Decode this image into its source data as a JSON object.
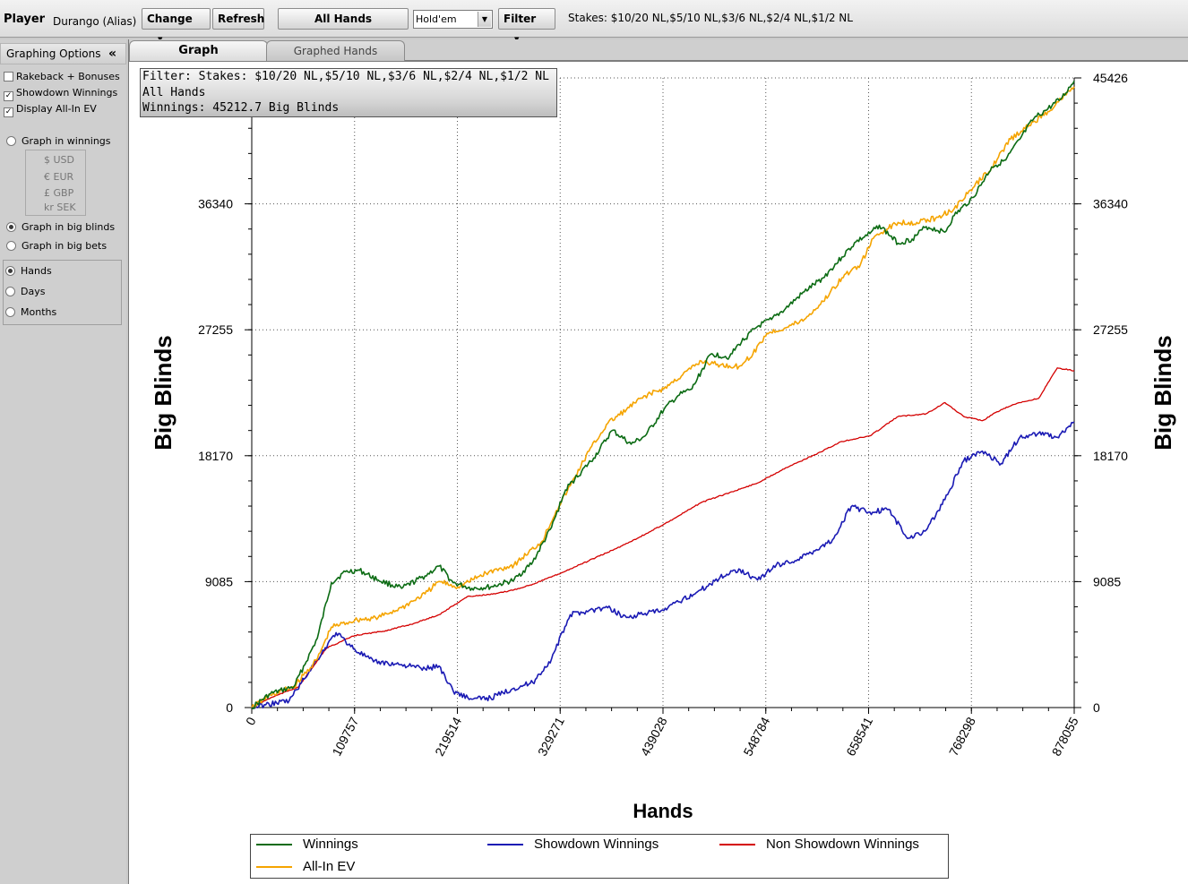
{
  "toolbar": {
    "player_label": "Player",
    "player_name": "Durango (Alias)",
    "change_label": "Change",
    "refresh_label": "Refresh",
    "all_hands_label": "All Hands",
    "game_value": "Hold'em",
    "filter_label": "Filter",
    "stakes_text": "Stakes: $10/20 NL,$5/10 NL,$3/6 NL,$2/4 NL,$1/2 NL"
  },
  "sidebar": {
    "title": "Graphing Options",
    "collapse_glyph": "«",
    "options": [
      {
        "label": "Rakeback + Bonuses",
        "checked": false
      },
      {
        "label": "Showdown Winnings",
        "checked": true
      },
      {
        "label": "Display All-In EV",
        "checked": true
      }
    ],
    "graph_in_winnings": "Graph in winnings",
    "currencies": [
      "$ USD",
      "€ EUR",
      "£ GBP",
      "kr SEK"
    ],
    "graph_in_big_blinds": "Graph in big blinds",
    "graph_in_big_bets": "Graph in big bets",
    "unit_selected": "big blinds",
    "timeframes": [
      "Hands",
      "Days",
      "Months"
    ],
    "timeframe_selected": "Hands"
  },
  "tabs": {
    "graph": "Graph",
    "graphed_hands": "Graphed Hands",
    "active": "Graph"
  },
  "filter_box": {
    "line1": "Filter: Stakes: $10/20 NL,$5/10 NL,$3/6 NL,$2/4 NL,$1/2 NL",
    "line2": "All Hands",
    "line3": "Winnings: 45212.7 Big Blinds"
  },
  "colors": {
    "winnings": "#0b6b13",
    "all_in_ev": "#f5a400",
    "showdown": "#1a1ab4",
    "non_showdown": "#d40000"
  },
  "chart_data": {
    "type": "line",
    "xlabel": "Hands",
    "ylabel": "Big Blinds",
    "x_ticks": [
      "0",
      "109757",
      "219514",
      "329271",
      "439028",
      "548784",
      "658541",
      "768298",
      "878055"
    ],
    "y_ticks": [
      "0",
      "9085",
      "18170",
      "27255",
      "36340",
      "45426"
    ],
    "xlim": [
      0,
      878055
    ],
    "ylim": [
      0,
      45426
    ],
    "grid": true,
    "legend_position": "bottom",
    "series": [
      {
        "name": "Winnings",
        "color": "#0b6b13",
        "x": [
          0,
          20000,
          45000,
          70000,
          85000,
          100000,
          115000,
          135000,
          160000,
          185000,
          200000,
          215000,
          235000,
          255000,
          280000,
          300000,
          320000,
          335000,
          345000,
          365000,
          385000,
          405000,
          420000,
          440000,
          455000,
          470000,
          490000,
          510000,
          520000,
          540000,
          555000,
          570000,
          590000,
          610000,
          630000,
          645000,
          660000,
          670000,
          690000,
          705000,
          720000,
          740000,
          750000,
          770000,
          790000,
          805000,
          820000,
          835000,
          850000,
          865000,
          878055
        ],
        "y": [
          0,
          1000,
          1500,
          5000,
          9000,
          9800,
          9900,
          9200,
          8600,
          9500,
          10200,
          9000,
          8600,
          8700,
          9200,
          10500,
          13000,
          15700,
          16500,
          18000,
          20000,
          19000,
          19600,
          21500,
          22500,
          23000,
          25500,
          25300,
          26200,
          27500,
          28000,
          28800,
          30000,
          31000,
          32500,
          33600,
          34200,
          34800,
          33500,
          33800,
          34700,
          34300,
          35500,
          36800,
          39000,
          39500,
          41000,
          42500,
          43200,
          44000,
          45213
        ]
      },
      {
        "name": "All-In EV",
        "color": "#f5a400",
        "x": [
          0,
          20000,
          45000,
          70000,
          85000,
          110000,
          135000,
          160000,
          185000,
          200000,
          220000,
          250000,
          280000,
          310000,
          325000,
          340000,
          360000,
          380000,
          400000,
          420000,
          440000,
          460000,
          480000,
          500000,
          520000,
          535000,
          550000,
          570000,
          590000,
          610000,
          630000,
          650000,
          665000,
          690000,
          710000,
          730000,
          750000,
          770000,
          790000,
          810000,
          830000,
          850000,
          878055
        ],
        "y": [
          0,
          900,
          1500,
          3500,
          5800,
          6300,
          6500,
          7200,
          8200,
          9100,
          8700,
          9700,
          10300,
          12000,
          14200,
          16000,
          18500,
          20500,
          21500,
          22500,
          23000,
          24000,
          25000,
          24700,
          24600,
          25500,
          27000,
          27400,
          28000,
          29300,
          31000,
          32000,
          34000,
          35000,
          35000,
          35300,
          36000,
          37500,
          39000,
          41000,
          42000,
          43000,
          44800
        ]
      },
      {
        "name": "Showdown Winnings",
        "color": "#1a1ab4",
        "x": [
          0,
          15000,
          40000,
          70000,
          90000,
          110000,
          130000,
          160000,
          185000,
          200000,
          215000,
          235000,
          255000,
          280000,
          300000,
          320000,
          340000,
          360000,
          380000,
          400000,
          420000,
          440000,
          460000,
          480000,
          500000,
          520000,
          540000,
          560000,
          580000,
          600000,
          620000,
          640000,
          660000,
          680000,
          700000,
          720000,
          740000,
          760000,
          780000,
          800000,
          820000,
          840000,
          860000,
          878055
        ],
        "y": [
          0,
          200,
          500,
          3500,
          5400,
          4200,
          3300,
          3100,
          2800,
          3000,
          1200,
          600,
          700,
          1400,
          1800,
          3500,
          6700,
          7000,
          7200,
          6500,
          6800,
          7000,
          7800,
          8500,
          9400,
          10000,
          9200,
          10300,
          10600,
          11300,
          12100,
          14500,
          14100,
          14300,
          12200,
          12800,
          15000,
          17800,
          18500,
          17600,
          19500,
          19800,
          19500,
          20600
        ]
      },
      {
        "name": "Non Showdown Winnings",
        "color": "#d40000",
        "x": [
          0,
          20000,
          50000,
          80000,
          110000,
          140000,
          170000,
          200000,
          230000,
          260000,
          280000,
          300000,
          330000,
          360000,
          390000,
          420000,
          450000,
          480000,
          510000,
          540000,
          570000,
          600000,
          630000,
          660000,
          690000,
          720000,
          740000,
          760000,
          780000,
          800000,
          820000,
          840000,
          860000,
          878055
        ],
        "y": [
          0,
          700,
          1500,
          4300,
          5200,
          5500,
          6000,
          6700,
          8000,
          8200,
          8500,
          8900,
          9700,
          10600,
          11500,
          12500,
          13600,
          14800,
          15500,
          16200,
          17300,
          18200,
          19200,
          19600,
          21000,
          21200,
          22000,
          21000,
          20700,
          21500,
          22000,
          22300,
          24500,
          24300
        ]
      }
    ]
  }
}
